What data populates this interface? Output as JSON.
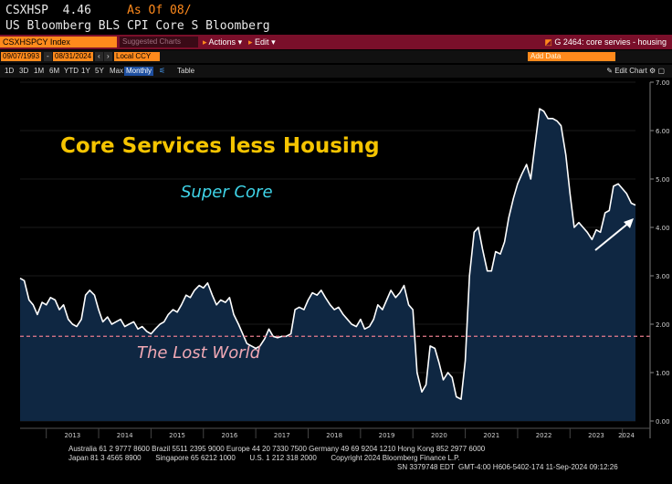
{
  "ticker": {
    "symbol": "CSXHSP",
    "price": "4.46",
    "as_of": "As Of 08/",
    "description": "US Bloomberg BLS CPI Core S Bloomberg"
  },
  "toolbar": {
    "security": "CSXHSPCY Index",
    "suggested": "Suggested Charts",
    "actions": "Actions",
    "edit": "Edit",
    "graph_title": "G 2464: core servies - housing"
  },
  "dates": {
    "start": "09/07/1993",
    "end": "08/31/2024",
    "ccy": "Local CCY",
    "add_data": "Add Data"
  },
  "ranges": [
    "1D",
    "3D",
    "1M",
    "6M",
    "YTD",
    "1Y",
    "5Y",
    "Max"
  ],
  "frequency": "Monthly",
  "view_table": "Table",
  "edit_chart": "Edit Chart",
  "chart_data": {
    "type": "area",
    "title": "Core Services less Housing",
    "annotations": {
      "super_core": "Super Core",
      "lost_world": "The Lost World",
      "lost_world_level": 1.75
    },
    "ylim": [
      0,
      7
    ],
    "y_ticks": [
      "0.00",
      "1.00",
      "2.00",
      "3.00",
      "4.00",
      "5.00",
      "6.00",
      "7.00"
    ],
    "x_ticks": [
      "2013",
      "2014",
      "2015",
      "2016",
      "2017",
      "2018",
      "2019",
      "2020",
      "2021",
      "2022",
      "2023",
      "2024"
    ],
    "colors": {
      "fill": "#0f2742",
      "line": "#ffffff",
      "dashed": "#e67b8c",
      "arrow": "#ffffff"
    },
    "series": [
      {
        "x": 2012.5,
        "y": 2.95
      },
      {
        "x": 2012.58,
        "y": 2.9
      },
      {
        "x": 2012.67,
        "y": 2.5
      },
      {
        "x": 2012.75,
        "y": 2.4
      },
      {
        "x": 2012.83,
        "y": 2.2
      },
      {
        "x": 2012.92,
        "y": 2.45
      },
      {
        "x": 2013.0,
        "y": 2.4
      },
      {
        "x": 2013.08,
        "y": 2.55
      },
      {
        "x": 2013.17,
        "y": 2.5
      },
      {
        "x": 2013.25,
        "y": 2.3
      },
      {
        "x": 2013.33,
        "y": 2.4
      },
      {
        "x": 2013.42,
        "y": 2.1
      },
      {
        "x": 2013.5,
        "y": 2.0
      },
      {
        "x": 2013.58,
        "y": 1.95
      },
      {
        "x": 2013.67,
        "y": 2.1
      },
      {
        "x": 2013.75,
        "y": 2.6
      },
      {
        "x": 2013.83,
        "y": 2.7
      },
      {
        "x": 2013.92,
        "y": 2.6
      },
      {
        "x": 2014.0,
        "y": 2.3
      },
      {
        "x": 2014.08,
        "y": 2.05
      },
      {
        "x": 2014.17,
        "y": 2.15
      },
      {
        "x": 2014.25,
        "y": 2.0
      },
      {
        "x": 2014.33,
        "y": 2.05
      },
      {
        "x": 2014.42,
        "y": 2.1
      },
      {
        "x": 2014.5,
        "y": 1.95
      },
      {
        "x": 2014.58,
        "y": 2.0
      },
      {
        "x": 2014.67,
        "y": 2.05
      },
      {
        "x": 2014.75,
        "y": 1.9
      },
      {
        "x": 2014.83,
        "y": 1.95
      },
      {
        "x": 2014.92,
        "y": 1.85
      },
      {
        "x": 2015.0,
        "y": 1.8
      },
      {
        "x": 2015.08,
        "y": 1.9
      },
      {
        "x": 2015.17,
        "y": 2.0
      },
      {
        "x": 2015.25,
        "y": 2.05
      },
      {
        "x": 2015.33,
        "y": 2.2
      },
      {
        "x": 2015.42,
        "y": 2.3
      },
      {
        "x": 2015.5,
        "y": 2.25
      },
      {
        "x": 2015.58,
        "y": 2.4
      },
      {
        "x": 2015.67,
        "y": 2.6
      },
      {
        "x": 2015.75,
        "y": 2.55
      },
      {
        "x": 2015.83,
        "y": 2.7
      },
      {
        "x": 2015.92,
        "y": 2.8
      },
      {
        "x": 2016.0,
        "y": 2.75
      },
      {
        "x": 2016.08,
        "y": 2.85
      },
      {
        "x": 2016.17,
        "y": 2.6
      },
      {
        "x": 2016.25,
        "y": 2.4
      },
      {
        "x": 2016.33,
        "y": 2.5
      },
      {
        "x": 2016.42,
        "y": 2.45
      },
      {
        "x": 2016.5,
        "y": 2.55
      },
      {
        "x": 2016.58,
        "y": 2.2
      },
      {
        "x": 2016.67,
        "y": 2.0
      },
      {
        "x": 2016.75,
        "y": 1.8
      },
      {
        "x": 2016.83,
        "y": 1.6
      },
      {
        "x": 2016.92,
        "y": 1.55
      },
      {
        "x": 2017.0,
        "y": 1.5
      },
      {
        "x": 2017.08,
        "y": 1.55
      },
      {
        "x": 2017.17,
        "y": 1.7
      },
      {
        "x": 2017.25,
        "y": 1.9
      },
      {
        "x": 2017.33,
        "y": 1.75
      },
      {
        "x": 2017.42,
        "y": 1.72
      },
      {
        "x": 2017.5,
        "y": 1.75
      },
      {
        "x": 2017.58,
        "y": 1.75
      },
      {
        "x": 2017.67,
        "y": 1.8
      },
      {
        "x": 2017.75,
        "y": 2.3
      },
      {
        "x": 2017.83,
        "y": 2.35
      },
      {
        "x": 2017.92,
        "y": 2.3
      },
      {
        "x": 2018.0,
        "y": 2.5
      },
      {
        "x": 2018.08,
        "y": 2.65
      },
      {
        "x": 2018.17,
        "y": 2.6
      },
      {
        "x": 2018.25,
        "y": 2.7
      },
      {
        "x": 2018.33,
        "y": 2.55
      },
      {
        "x": 2018.42,
        "y": 2.4
      },
      {
        "x": 2018.5,
        "y": 2.3
      },
      {
        "x": 2018.58,
        "y": 2.35
      },
      {
        "x": 2018.67,
        "y": 2.2
      },
      {
        "x": 2018.75,
        "y": 2.1
      },
      {
        "x": 2018.83,
        "y": 2.0
      },
      {
        "x": 2018.92,
        "y": 1.95
      },
      {
        "x": 2019.0,
        "y": 2.1
      },
      {
        "x": 2019.08,
        "y": 1.9
      },
      {
        "x": 2019.17,
        "y": 1.95
      },
      {
        "x": 2019.25,
        "y": 2.1
      },
      {
        "x": 2019.33,
        "y": 2.4
      },
      {
        "x": 2019.42,
        "y": 2.3
      },
      {
        "x": 2019.5,
        "y": 2.5
      },
      {
        "x": 2019.58,
        "y": 2.7
      },
      {
        "x": 2019.67,
        "y": 2.55
      },
      {
        "x": 2019.75,
        "y": 2.65
      },
      {
        "x": 2019.83,
        "y": 2.8
      },
      {
        "x": 2019.92,
        "y": 2.4
      },
      {
        "x": 2020.0,
        "y": 2.3
      },
      {
        "x": 2020.08,
        "y": 1.0
      },
      {
        "x": 2020.17,
        "y": 0.6
      },
      {
        "x": 2020.25,
        "y": 0.75
      },
      {
        "x": 2020.33,
        "y": 1.55
      },
      {
        "x": 2020.42,
        "y": 1.5
      },
      {
        "x": 2020.5,
        "y": 1.2
      },
      {
        "x": 2020.58,
        "y": 0.85
      },
      {
        "x": 2020.67,
        "y": 1.0
      },
      {
        "x": 2020.75,
        "y": 0.9
      },
      {
        "x": 2020.83,
        "y": 0.5
      },
      {
        "x": 2020.92,
        "y": 0.45
      },
      {
        "x": 2021.0,
        "y": 1.25
      },
      {
        "x": 2021.08,
        "y": 3.0
      },
      {
        "x": 2021.17,
        "y": 3.9
      },
      {
        "x": 2021.25,
        "y": 4.0
      },
      {
        "x": 2021.33,
        "y": 3.55
      },
      {
        "x": 2021.42,
        "y": 3.1
      },
      {
        "x": 2021.5,
        "y": 3.1
      },
      {
        "x": 2021.58,
        "y": 3.5
      },
      {
        "x": 2021.67,
        "y": 3.45
      },
      {
        "x": 2021.75,
        "y": 3.7
      },
      {
        "x": 2021.83,
        "y": 4.2
      },
      {
        "x": 2021.92,
        "y": 4.6
      },
      {
        "x": 2022.0,
        "y": 4.9
      },
      {
        "x": 2022.08,
        "y": 5.1
      },
      {
        "x": 2022.17,
        "y": 5.3
      },
      {
        "x": 2022.25,
        "y": 5.0
      },
      {
        "x": 2022.33,
        "y": 5.7
      },
      {
        "x": 2022.42,
        "y": 6.45
      },
      {
        "x": 2022.5,
        "y": 6.4
      },
      {
        "x": 2022.58,
        "y": 6.25
      },
      {
        "x": 2022.67,
        "y": 6.25
      },
      {
        "x": 2022.75,
        "y": 6.2
      },
      {
        "x": 2022.83,
        "y": 6.1
      },
      {
        "x": 2022.92,
        "y": 5.5
      },
      {
        "x": 2023.0,
        "y": 4.7
      },
      {
        "x": 2023.08,
        "y": 4.0
      },
      {
        "x": 2023.17,
        "y": 4.1
      },
      {
        "x": 2023.25,
        "y": 4.0
      },
      {
        "x": 2023.33,
        "y": 3.9
      },
      {
        "x": 2023.42,
        "y": 3.75
      },
      {
        "x": 2023.5,
        "y": 3.95
      },
      {
        "x": 2023.58,
        "y": 3.9
      },
      {
        "x": 2023.67,
        "y": 4.3
      },
      {
        "x": 2023.75,
        "y": 4.35
      },
      {
        "x": 2023.83,
        "y": 4.85
      },
      {
        "x": 2023.92,
        "y": 4.9
      },
      {
        "x": 2024.0,
        "y": 4.8
      },
      {
        "x": 2024.08,
        "y": 4.7
      },
      {
        "x": 2024.17,
        "y": 4.5
      },
      {
        "x": 2024.25,
        "y": 4.46
      }
    ]
  },
  "footer": {
    "line1": "Australia 61 2 9777 8600 Brazil 5511 2395 9000 Europe 44 20 7330 7500 Germany 49 69 9204 1210 Hong Kong 852 2977 6000",
    "line2": "Japan 81 3 4565 8900       Singapore 65 6212 1000       U.S. 1 212 318 2000       Copyright 2024 Bloomberg Finance L.P.",
    "line3": "SN 3379748 EDT  GMT-4:00 H606-5402-174 11-Sep-2024 09:12:26"
  }
}
